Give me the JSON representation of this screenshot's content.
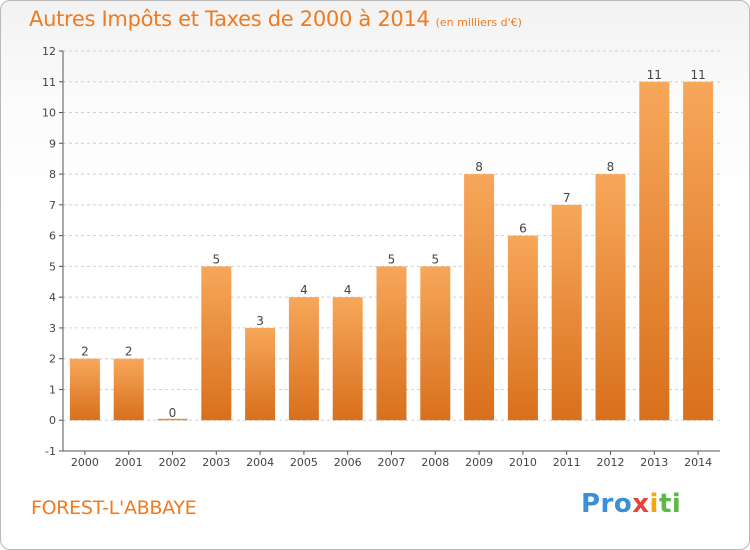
{
  "header": {
    "title": "Autres Impôts et Taxes de 2000 à 2014",
    "subtitle": "(en milliers d'€)"
  },
  "footer": {
    "commune": "FOREST-L'ABBAYE",
    "logo_parts": [
      "Pro",
      "x",
      "i",
      "ti"
    ]
  },
  "colors": {
    "accent": "#f07a20",
    "bar_light": "#f7a75a",
    "bar_dark": "#d8701c",
    "grid": "#cfcfcf",
    "axis": "#555555"
  },
  "chart_data": {
    "type": "bar",
    "categories": [
      "2000",
      "2001",
      "2002",
      "2003",
      "2004",
      "2005",
      "2006",
      "2007",
      "2008",
      "2009",
      "2010",
      "2011",
      "2012",
      "2013",
      "2014"
    ],
    "values": [
      2,
      2,
      0,
      5,
      3,
      4,
      4,
      5,
      5,
      8,
      6,
      7,
      8,
      11,
      11
    ],
    "ylim": [
      -1,
      12
    ],
    "yticks": [
      -1,
      0,
      1,
      2,
      3,
      4,
      5,
      6,
      7,
      8,
      9,
      10,
      11,
      12
    ],
    "grid": true,
    "grid_style": "dashed horizontal"
  }
}
